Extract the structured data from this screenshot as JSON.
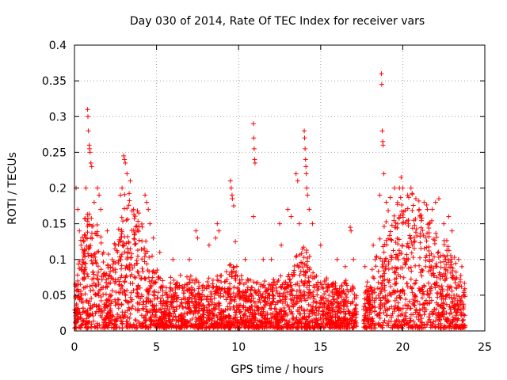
{
  "chart_data": {
    "type": "scatter",
    "title": "Day 030 of 2014, Rate Of TEC Index for receiver vars",
    "xlabel": "GPS time / hours",
    "ylabel": "ROTI / TECUs",
    "xlim": [
      0,
      25
    ],
    "ylim": [
      0,
      0.4
    ],
    "xticks": [
      0,
      5,
      10,
      15,
      20,
      25
    ],
    "xtick_labels": [
      "0",
      "5",
      "10",
      "15",
      "20",
      "25"
    ],
    "yticks": [
      0,
      0.05,
      0.1,
      0.15,
      0.2,
      0.25,
      0.3,
      0.35,
      0.4
    ],
    "ytick_labels": [
      "0",
      "0.05",
      "0.1",
      "0.15",
      "0.2",
      "0.25",
      "0.3",
      "0.35",
      "0.4"
    ],
    "grid": true,
    "marker": "plus",
    "color": "#ff0000",
    "data_gap_hours": [
      17.2,
      17.6
    ],
    "series": [
      {
        "name": "ROTI",
        "points": [
          [
            0.1,
            0.2
          ],
          [
            0.2,
            0.17
          ],
          [
            0.3,
            0.14
          ],
          [
            0.4,
            0.12
          ],
          [
            0.5,
            0.1
          ],
          [
            0.6,
            0.08
          ],
          [
            0.7,
            0.2
          ],
          [
            0.8,
            0.31
          ],
          [
            0.82,
            0.3
          ],
          [
            0.85,
            0.28
          ],
          [
            0.9,
            0.26
          ],
          [
            0.92,
            0.255
          ],
          [
            0.95,
            0.25
          ],
          [
            1.0,
            0.235
          ],
          [
            1.05,
            0.23
          ],
          [
            1.2,
            0.18
          ],
          [
            1.4,
            0.2
          ],
          [
            1.5,
            0.19
          ],
          [
            1.6,
            0.17
          ],
          [
            2.0,
            0.14
          ],
          [
            2.5,
            0.12
          ],
          [
            2.8,
            0.19
          ],
          [
            2.9,
            0.2
          ],
          [
            3.0,
            0.245
          ],
          [
            3.05,
            0.24
          ],
          [
            3.1,
            0.235
          ],
          [
            3.2,
            0.22
          ],
          [
            3.4,
            0.21
          ],
          [
            3.6,
            0.17
          ],
          [
            4.3,
            0.19
          ],
          [
            4.4,
            0.18
          ],
          [
            4.5,
            0.17
          ],
          [
            4.6,
            0.15
          ],
          [
            4.8,
            0.13
          ],
          [
            5.2,
            0.11
          ],
          [
            6.0,
            0.1
          ],
          [
            7.0,
            0.1
          ],
          [
            7.4,
            0.14
          ],
          [
            7.5,
            0.13
          ],
          [
            8.2,
            0.12
          ],
          [
            8.6,
            0.13
          ],
          [
            8.7,
            0.15
          ],
          [
            8.8,
            0.14
          ],
          [
            9.5,
            0.21
          ],
          [
            9.55,
            0.2
          ],
          [
            9.6,
            0.19
          ],
          [
            9.62,
            0.185
          ],
          [
            9.7,
            0.175
          ],
          [
            9.8,
            0.125
          ],
          [
            10.4,
            0.1
          ],
          [
            10.9,
            0.29
          ],
          [
            10.92,
            0.27
          ],
          [
            10.95,
            0.255
          ],
          [
            10.98,
            0.24
          ],
          [
            11.0,
            0.235
          ],
          [
            10.9,
            0.16
          ],
          [
            11.5,
            0.1
          ],
          [
            12.0,
            0.1
          ],
          [
            12.5,
            0.15
          ],
          [
            12.6,
            0.12
          ],
          [
            13.0,
            0.17
          ],
          [
            13.2,
            0.16
          ],
          [
            13.5,
            0.22
          ],
          [
            13.6,
            0.21
          ],
          [
            13.7,
            0.15
          ],
          [
            14.0,
            0.28
          ],
          [
            14.02,
            0.27
          ],
          [
            14.05,
            0.255
          ],
          [
            14.08,
            0.24
          ],
          [
            14.1,
            0.23
          ],
          [
            14.12,
            0.22
          ],
          [
            14.15,
            0.2
          ],
          [
            14.2,
            0.19
          ],
          [
            14.3,
            0.17
          ],
          [
            14.5,
            0.15
          ],
          [
            15.0,
            0.12
          ],
          [
            16.0,
            0.1
          ],
          [
            16.5,
            0.09
          ],
          [
            16.8,
            0.145
          ],
          [
            16.85,
            0.14
          ],
          [
            17.0,
            0.1
          ],
          [
            17.7,
            0.09
          ],
          [
            18.2,
            0.12
          ],
          [
            18.6,
            0.19
          ],
          [
            18.7,
            0.36
          ],
          [
            18.72,
            0.345
          ],
          [
            18.75,
            0.28
          ],
          [
            18.78,
            0.265
          ],
          [
            18.8,
            0.26
          ],
          [
            18.85,
            0.22
          ],
          [
            19.0,
            0.18
          ],
          [
            19.5,
            0.2
          ],
          [
            19.8,
            0.2
          ],
          [
            19.9,
            0.215
          ],
          [
            20.0,
            0.2
          ],
          [
            20.3,
            0.19
          ],
          [
            20.5,
            0.2
          ],
          [
            20.8,
            0.185
          ],
          [
            21.0,
            0.17
          ],
          [
            21.3,
            0.18
          ],
          [
            21.5,
            0.17
          ],
          [
            21.8,
            0.17
          ],
          [
            22.0,
            0.18
          ],
          [
            22.2,
            0.185
          ],
          [
            22.5,
            0.15
          ],
          [
            22.8,
            0.16
          ],
          [
            23.0,
            0.14
          ],
          [
            23.4,
            0.1
          ],
          [
            23.6,
            0.09
          ]
        ]
      }
    ]
  }
}
